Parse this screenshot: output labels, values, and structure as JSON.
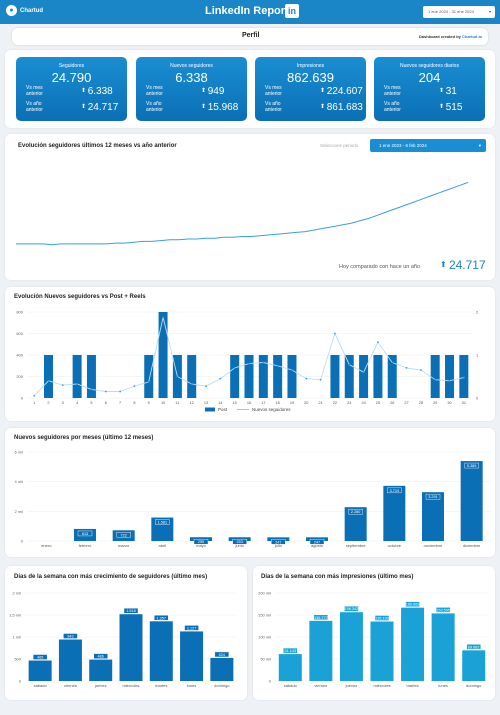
{
  "header": {
    "logo_text": "Chartud",
    "title": "LinkedIn Report",
    "icon": "linkedin-icon",
    "date_range": "1 ene 2024 - 31 ene 2024"
  },
  "profile_bar": {
    "title": "Perfil",
    "credit_prefix": "Dashboard created by",
    "credit_brand": "Chartud.io"
  },
  "kpis": [
    {
      "label": "Seguidores",
      "value": "24.790",
      "vs_mes_label": "Vs mes anterior",
      "vs_mes": "6.338",
      "vs_ano_label": "Vs año anterior",
      "vs_ano": "24.717"
    },
    {
      "label": "Nuevos seguidores",
      "value": "6.338",
      "vs_mes_label": "Vs mes anterior",
      "vs_mes": "949",
      "vs_ano_label": "Vs año anterior",
      "vs_ano": "15.968"
    },
    {
      "label": "Impresiones",
      "value": "862.639",
      "vs_mes_label": "Vs mes anterior",
      "vs_mes": "224.607",
      "vs_ano_label": "Vs año anterior",
      "vs_ano": "861.683"
    },
    {
      "label": "Nuevos seguidores diarios",
      "value": "204",
      "vs_mes_label": "Vs mes anterior",
      "vs_mes": "31",
      "vs_ano_label": "Vs año anterior",
      "vs_ano": "515"
    }
  ],
  "colors": {
    "accent": "#1a86c8",
    "bar": "#0b6fb5",
    "bar_alt": "#1aa1d6",
    "line": "#3a9fe0"
  },
  "evolution": {
    "title": "Evolución seguidores últimos 12 meses vs año anterior",
    "period_label": "Seleccione periodo",
    "period_value": "1 ene 2023 - 6 feb 2024",
    "compare_label": "Hoy comparado con hace un año",
    "compare_value": "24.717"
  },
  "chart_data": [
    {
      "type": "line",
      "title": "Evolución seguidores últimos 12 meses vs año anterior",
      "x": [
        0,
        1,
        2,
        3,
        4,
        5,
        6,
        7,
        8,
        9,
        10,
        11,
        12,
        13,
        14,
        15,
        16,
        17,
        18,
        19,
        20,
        21,
        22,
        23,
        24,
        25,
        26,
        27,
        28,
        29,
        30,
        31,
        32,
        33,
        34,
        35,
        36,
        37,
        38,
        39,
        40,
        41,
        42,
        43,
        44,
        45,
        46,
        47,
        48,
        49,
        50
      ],
      "y": [
        0.05,
        0.05,
        0.05,
        0.05,
        0.04,
        0.05,
        0.05,
        0.05,
        0.05,
        0.05,
        0.05,
        0.06,
        0.06,
        0.07,
        0.08,
        0.08,
        0.09,
        0.1,
        0.1,
        0.11,
        0.11,
        0.12,
        0.12,
        0.13,
        0.13,
        0.14,
        0.14,
        0.15,
        0.16,
        0.17,
        0.18,
        0.19,
        0.2,
        0.22,
        0.24,
        0.26,
        0.28,
        0.3,
        0.33,
        0.36,
        0.4,
        0.44,
        0.48,
        0.52,
        0.56,
        0.6,
        0.64,
        0.68,
        0.72,
        0.76,
        0.8
      ],
      "ylim": [
        0,
        1
      ]
    },
    {
      "type": "bar",
      "title": "Evolución Nuevos seguidores vs Post + Reels",
      "categories": [
        "1",
        "2",
        "3",
        "4",
        "5",
        "6",
        "7",
        "8",
        "9",
        "10",
        "11",
        "12",
        "13",
        "14",
        "15",
        "16",
        "17",
        "18",
        "19",
        "20",
        "21",
        "22",
        "23",
        "24",
        "25",
        "26",
        "27",
        "28",
        "29",
        "30",
        "31"
      ],
      "series": [
        {
          "name": "Post",
          "axis": "right",
          "values": [
            0,
            1,
            0,
            1,
            1,
            0,
            0,
            0,
            1,
            2,
            1,
            1,
            0,
            0,
            1,
            1,
            1,
            1,
            1,
            0,
            0,
            1,
            1,
            1,
            1,
            1,
            0,
            0,
            1,
            1,
            1
          ]
        },
        {
          "name": "Nuevos seguidores",
          "axis": "left",
          "values": [
            20,
            160,
            120,
            130,
            80,
            60,
            60,
            110,
            150,
            750,
            200,
            130,
            110,
            180,
            280,
            320,
            330,
            300,
            260,
            180,
            170,
            600,
            310,
            240,
            520,
            330,
            280,
            260,
            170,
            160,
            190
          ]
        }
      ],
      "ylim_left": [
        0,
        800
      ],
      "yticks_left": [
        "0",
        "200",
        "400",
        "600",
        "800"
      ],
      "ylim_right": [
        0,
        2
      ],
      "yticks_right": [
        "0",
        "1",
        "2"
      ],
      "legend": "bottom-center"
    },
    {
      "type": "bar",
      "title": "Nuevos seguidores por meses (último 12 meses)",
      "categories": [
        "enero",
        "febrero",
        "marzo",
        "abril",
        "mayo",
        "junio",
        "julio",
        "agosto",
        "septiembre",
        "octubre",
        "noviembre",
        "diciembre"
      ],
      "values": [
        0,
        813,
        722,
        1581,
        255,
        253,
        247,
        247,
        2280,
        3719,
        3291,
        5389
      ],
      "labels": [
        "",
        "813",
        "722",
        "1.581",
        "255",
        "253",
        "247",
        "247",
        "2.280",
        "3.719",
        "3.291",
        "5.389"
      ],
      "ylim": [
        0,
        6000
      ],
      "yticks": [
        "0",
        "2 mil",
        "4 mil",
        "6 mil"
      ]
    },
    {
      "type": "bar",
      "title": "Días de la semana con más crecimiento de seguidores (último mes)",
      "categories": [
        "sábado",
        "viernes",
        "jueves",
        "miércoles",
        "martes",
        "lunes",
        "domingo"
      ],
      "values": [
        465,
        943,
        486,
        1518,
        1357,
        1127,
        524
      ],
      "labels": [
        "465",
        "943",
        "486",
        "1.518",
        "1.357",
        "1.127",
        "524"
      ],
      "ylim": [
        0,
        2000
      ],
      "yticks": [
        "0",
        "500",
        "1 mil",
        "1,5 mil",
        "2 mil"
      ]
    },
    {
      "type": "bar",
      "title": "Días de la semana con más impresiones (último mes)",
      "categories": [
        "sábado",
        "viernes",
        "jueves",
        "miércoles",
        "martes",
        "lunes",
        "domingo"
      ],
      "values": [
        61143,
        136777,
        156342,
        135193,
        166669,
        153595,
        69682
      ],
      "labels": [
        "61.143",
        "136.777",
        "156.342",
        "135.193",
        "166.669",
        "153.595",
        "69.682"
      ],
      "ylim": [
        0,
        200000
      ],
      "yticks": [
        "0",
        "50 mil",
        "100 mil",
        "150 mil",
        "200 mil"
      ]
    }
  ]
}
